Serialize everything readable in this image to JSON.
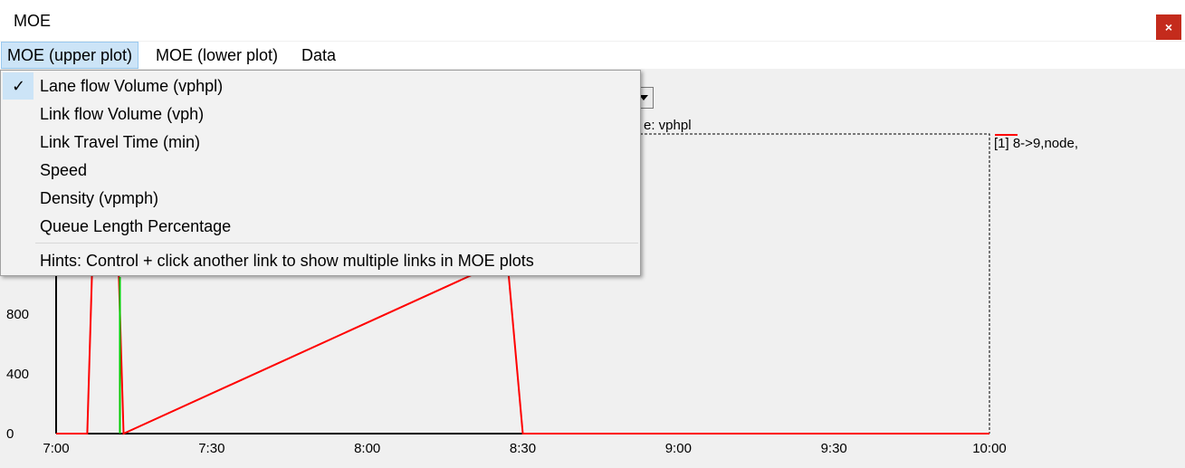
{
  "window": {
    "title": "MOE",
    "close_label": "×"
  },
  "menubar": {
    "items": [
      {
        "label": "MOE (upper plot)"
      },
      {
        "label": "MOE (lower plot)"
      },
      {
        "label": "Data"
      }
    ]
  },
  "dropdown": {
    "items": [
      {
        "label": "Lane flow Volume (vphpl)",
        "checked": true
      },
      {
        "label": "Link flow Volume (vph)"
      },
      {
        "label": "Link Travel Time (min)"
      },
      {
        "label": "Speed"
      },
      {
        "label": "Density (vpmph)"
      },
      {
        "label": "Queue Length Percentage"
      }
    ],
    "hint": "Hints: Control + click another link to show multiple links in MOE plots"
  },
  "plot": {
    "unit_label": "e: vphpl",
    "legend": "[1] 8->9,node,",
    "colors": {
      "series": "#ff0000",
      "marker": "#00cc00",
      "axis": "#000000"
    }
  },
  "chart_data": {
    "type": "line",
    "x_ticks": [
      "7:00",
      "7:30",
      "8:00",
      "8:30",
      "9:00",
      "9:30",
      "10:00"
    ],
    "y_ticks_visible": [
      "0",
      "400",
      "800"
    ],
    "ylim": [
      0,
      1200
    ],
    "series": [
      {
        "name": "[1] 8->9,node,",
        "color": "#ff0000",
        "x": [
          "7:00",
          "7:06",
          "7:07",
          "7:12",
          "7:13",
          "8:27",
          "8:30",
          "10:00"
        ],
        "y": [
          0,
          0,
          1200,
          1200,
          0,
          1200,
          0,
          0
        ]
      }
    ]
  }
}
